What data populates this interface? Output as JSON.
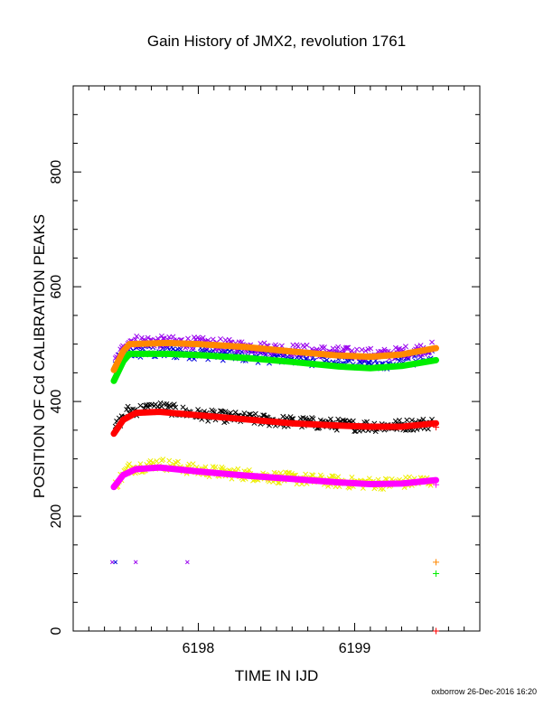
{
  "chart_data": {
    "type": "scatter",
    "title": "Gain History of JMX2, revolution 1761",
    "xlabel": "TIME IN IJD",
    "ylabel": "POSITION OF Cd CALIBRATION PEAKS",
    "xlim": [
      6197.2,
      6199.8
    ],
    "ylim": [
      0,
      950
    ],
    "x_ticks": [
      6198,
      6199
    ],
    "y_ticks": [
      0,
      200,
      400,
      600,
      800
    ],
    "grid": false,
    "series": [
      {
        "color": "#0000dd",
        "marker": "x",
        "kind": "points",
        "center": [
          [
            6197.47,
            462
          ],
          [
            6197.55,
            487
          ],
          [
            6198.0,
            486
          ],
          [
            6198.5,
            478
          ],
          [
            6199.0,
            470
          ],
          [
            6199.2,
            468
          ],
          [
            6199.5,
            480
          ]
        ],
        "spread": 12
      },
      {
        "color": "#9900ee",
        "marker": "x",
        "kind": "points",
        "center": [
          [
            6197.47,
            470
          ],
          [
            6197.55,
            506
          ],
          [
            6198.0,
            502
          ],
          [
            6198.5,
            492
          ],
          [
            6199.0,
            484
          ],
          [
            6199.2,
            482
          ],
          [
            6199.5,
            494
          ]
        ],
        "spread": 10
      },
      {
        "color": "#000000",
        "marker": "x",
        "kind": "points",
        "center": [
          [
            6197.47,
            355
          ],
          [
            6197.55,
            383
          ],
          [
            6197.75,
            390
          ],
          [
            6198.0,
            377
          ],
          [
            6198.5,
            366
          ],
          [
            6199.0,
            358
          ],
          [
            6199.2,
            357
          ],
          [
            6199.5,
            362
          ]
        ],
        "spread": 10
      },
      {
        "color": "#eeee00",
        "marker": "x",
        "kind": "points",
        "center": [
          [
            6197.47,
            255
          ],
          [
            6197.55,
            283
          ],
          [
            6197.75,
            292
          ],
          [
            6198.0,
            280
          ],
          [
            6198.5,
            268
          ],
          [
            6199.0,
            258
          ],
          [
            6199.2,
            257
          ],
          [
            6199.5,
            262
          ]
        ],
        "spread": 10
      },
      {
        "color": "#00ee00",
        "marker": "line",
        "kind": "fit",
        "points": [
          [
            6197.46,
            436
          ],
          [
            6197.52,
            470
          ],
          [
            6197.56,
            483
          ],
          [
            6197.8,
            483
          ],
          [
            6198.0,
            481
          ],
          [
            6198.3,
            476
          ],
          [
            6198.6,
            469
          ],
          [
            6198.9,
            461
          ],
          [
            6199.1,
            458
          ],
          [
            6199.3,
            462
          ],
          [
            6199.52,
            472
          ]
        ]
      },
      {
        "color": "#ff8800",
        "marker": "line",
        "kind": "fit",
        "points": [
          [
            6197.46,
            455
          ],
          [
            6197.52,
            488
          ],
          [
            6197.56,
            500
          ],
          [
            6197.8,
            502
          ],
          [
            6198.0,
            500
          ],
          [
            6198.3,
            495
          ],
          [
            6198.6,
            487
          ],
          [
            6198.9,
            480
          ],
          [
            6199.1,
            478
          ],
          [
            6199.3,
            482
          ],
          [
            6199.52,
            493
          ]
        ]
      },
      {
        "color": "#ff0000",
        "marker": "line",
        "kind": "fit",
        "points": [
          [
            6197.46,
            344
          ],
          [
            6197.52,
            368
          ],
          [
            6197.6,
            380
          ],
          [
            6197.75,
            382
          ],
          [
            6198.0,
            376
          ],
          [
            6198.3,
            369
          ],
          [
            6198.6,
            362
          ],
          [
            6198.9,
            358
          ],
          [
            6199.1,
            356
          ],
          [
            6199.3,
            356
          ],
          [
            6199.52,
            362
          ]
        ]
      },
      {
        "color": "#ff00ff",
        "marker": "line",
        "kind": "fit",
        "points": [
          [
            6197.46,
            251
          ],
          [
            6197.52,
            272
          ],
          [
            6197.6,
            282
          ],
          [
            6197.75,
            285
          ],
          [
            6198.0,
            278
          ],
          [
            6198.3,
            271
          ],
          [
            6198.6,
            265
          ],
          [
            6198.9,
            259
          ],
          [
            6199.1,
            256
          ],
          [
            6199.3,
            257
          ],
          [
            6199.52,
            263
          ]
        ]
      }
    ],
    "extra_points": [
      {
        "x": 6197.45,
        "y": 120,
        "color": "#9900ee",
        "marker": "x"
      },
      {
        "x": 6197.47,
        "y": 120,
        "color": "#0000dd",
        "marker": "x"
      },
      {
        "x": 6197.6,
        "y": 120,
        "color": "#9900ee",
        "marker": "x"
      },
      {
        "x": 6197.93,
        "y": 120,
        "color": "#9900ee",
        "marker": "x"
      },
      {
        "x": 6199.52,
        "y": 120,
        "color": "#ff8800",
        "marker": "+"
      },
      {
        "x": 6199.52,
        "y": 100,
        "color": "#00ee00",
        "marker": "+"
      },
      {
        "x": 6199.52,
        "y": 355,
        "color": "#ff0000",
        "marker": "+"
      },
      {
        "x": 6199.52,
        "y": 255,
        "color": "#ff00ff",
        "marker": "+"
      },
      {
        "x": 6199.52,
        "y": 0,
        "color": "#ff0000",
        "marker": "+"
      }
    ]
  },
  "footer": "oxborrow 26-Dec-2016 16:20"
}
